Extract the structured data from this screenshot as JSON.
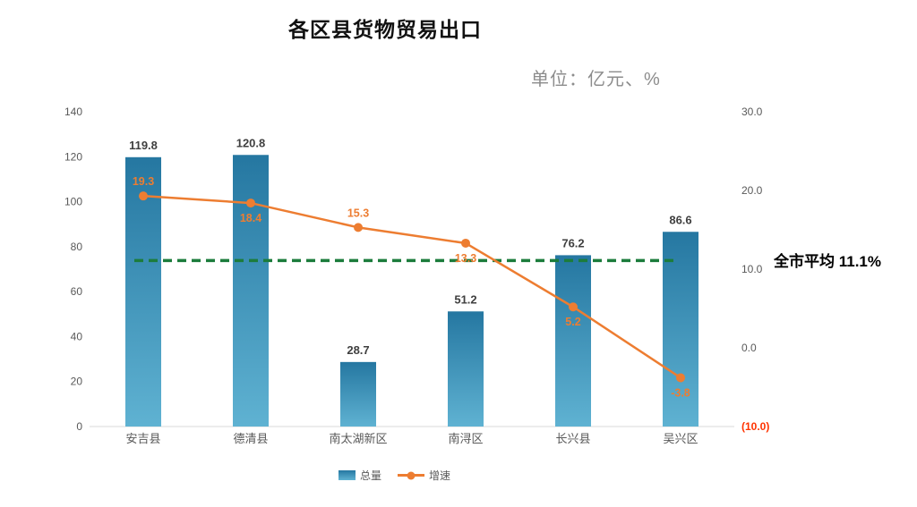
{
  "chart_data": {
    "type": "combo",
    "title": "各区县货物贸易出口",
    "units_label": "单位：亿元、%",
    "categories": [
      "安吉县",
      "德清县",
      "南太湖新区",
      "南浔区",
      "长兴县",
      "吴兴区"
    ],
    "series": [
      {
        "name": "总量",
        "type": "bar",
        "axis": "left",
        "values": [
          119.8,
          120.8,
          28.7,
          51.2,
          76.2,
          86.6
        ]
      },
      {
        "name": "增速",
        "type": "line",
        "axis": "right",
        "values": [
          19.3,
          18.4,
          15.3,
          13.3,
          5.2,
          -3.8
        ],
        "label_positions": [
          "above",
          "below",
          "above",
          "below",
          "below",
          "below"
        ]
      }
    ],
    "left_axis": {
      "min": 0,
      "max": 140,
      "ticks": [
        0,
        20,
        40,
        60,
        80,
        100,
        120,
        140
      ]
    },
    "right_axis": {
      "min": -10,
      "max": 30,
      "ticks": [
        -10,
        0,
        10,
        20,
        30
      ],
      "negative_format": "parentheses"
    },
    "average_line": {
      "value": 11.1,
      "label": "全市平均 11.1%"
    },
    "legend_position": "bottom",
    "grid": false,
    "colors": {
      "bar_top": "#2577A1",
      "bar_bottom": "#5FB2D2",
      "line": "#ED7D31",
      "average_line": "#1C7C3C",
      "negative_tick": "#FF3300",
      "tick_text": "#595959",
      "bar_label_text": "#3F3F3F",
      "axis_line": "#D9D9D9",
      "legend_swatch": "#4396B8"
    }
  }
}
